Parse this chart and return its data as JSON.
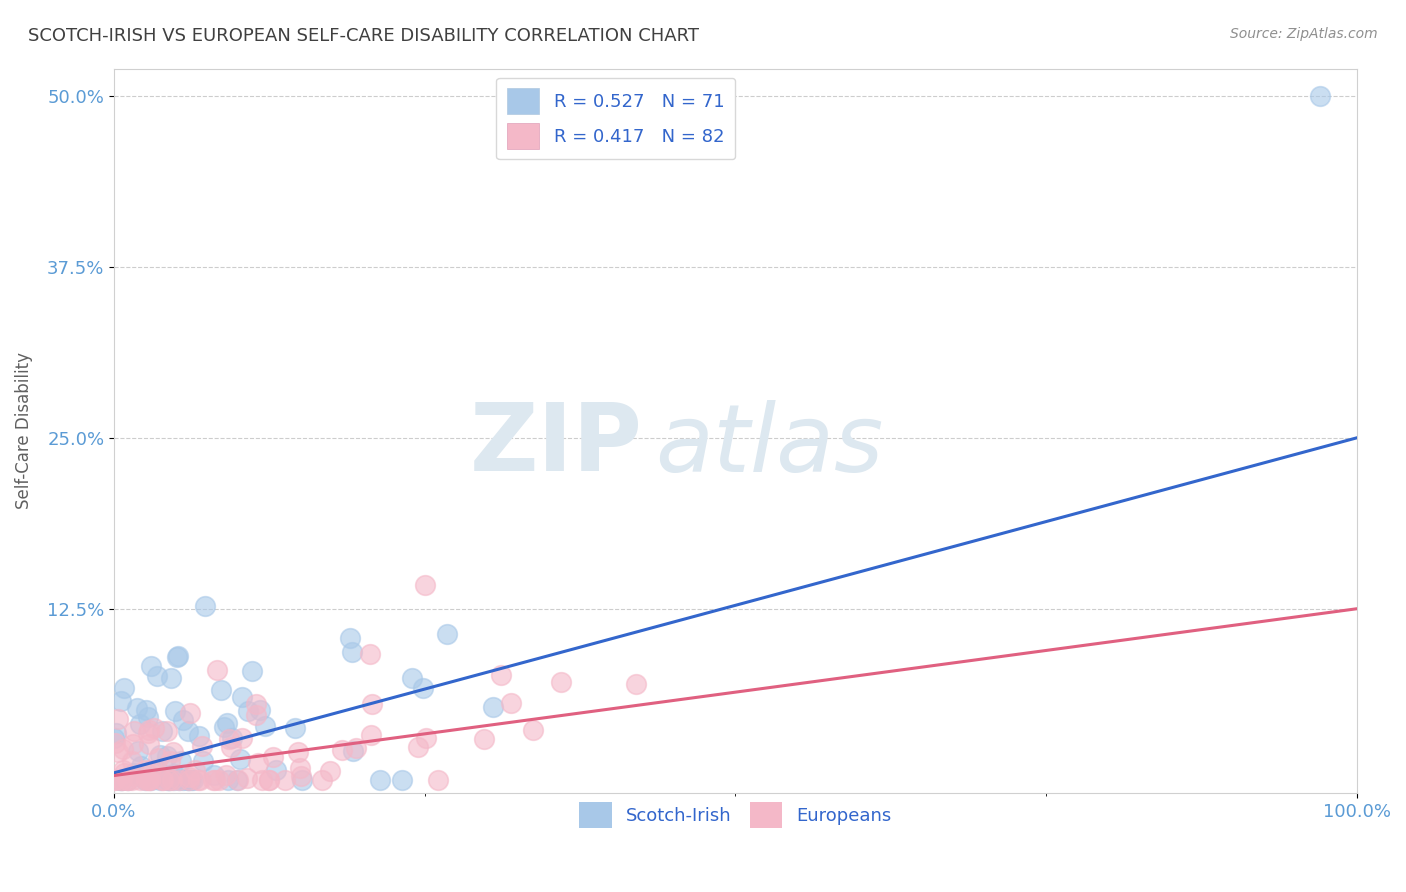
{
  "title": "SCOTCH-IRISH VS EUROPEAN SELF-CARE DISABILITY CORRELATION CHART",
  "source": "Source: ZipAtlas.com",
  "ylabel": "Self-Care Disability",
  "r_values": [
    0.527,
    0.417
  ],
  "n_values": [
    71,
    82
  ],
  "scotch_irish_color": "#a8c8e8",
  "european_color": "#f4b8c8",
  "scotch_irish_line_color": "#3366cc",
  "european_line_color": "#e06080",
  "title_color": "#404040",
  "tick_color": "#5b9bd5",
  "grid_color": "#c8c8c8",
  "legend_text_color": "#3366cc",
  "watermark_color": "#dde8f0",
  "xlim": [
    0,
    100
  ],
  "ylim": [
    -1,
    52
  ],
  "yticks": [
    12.5,
    25.0,
    37.5,
    50.0
  ],
  "si_intercept": 0.5,
  "si_slope": 0.245,
  "eu_intercept": 0.3,
  "eu_slope": 0.122
}
